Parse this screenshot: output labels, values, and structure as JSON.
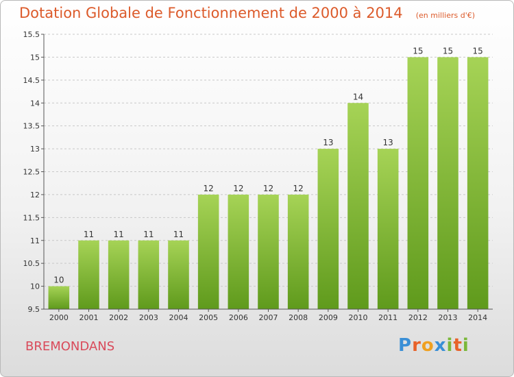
{
  "header": {
    "title": "Dotation Globale de Fonctionnement de 2000 à 2014",
    "subtitle": "(en milliers d'€)"
  },
  "commune": "BREMONDANS",
  "brand": {
    "name": "Proxiti",
    "letters": [
      {
        "ch": "P",
        "color": "#3a8fd6"
      },
      {
        "ch": "r",
        "color": "#e8622a"
      },
      {
        "ch": "o",
        "color": "#f0a020"
      },
      {
        "ch": "x",
        "color": "#3a8fd6"
      },
      {
        "ch": "i",
        "color": "#7ab83a"
      },
      {
        "ch": "t",
        "color": "#e8622a"
      },
      {
        "ch": "i",
        "color": "#7ab83a"
      }
    ]
  },
  "chart_data": {
    "type": "bar",
    "categories": [
      "2000",
      "2001",
      "2002",
      "2003",
      "2004",
      "2005",
      "2006",
      "2007",
      "2008",
      "2009",
      "2010",
      "2011",
      "2012",
      "2013",
      "2014"
    ],
    "values": [
      10,
      11,
      11,
      11,
      11,
      12,
      12,
      12,
      12,
      13,
      14,
      13,
      15,
      15,
      15
    ],
    "labels": [
      "10",
      "11",
      "11",
      "11",
      "11",
      "12",
      "12",
      "12",
      "12",
      "13",
      "14",
      "13",
      "15",
      "15",
      "15"
    ],
    "yticks": [
      "9.5",
      "10",
      "10.5",
      "11",
      "11.5",
      "12",
      "12.5",
      "13",
      "13.5",
      "14",
      "14.5",
      "15",
      "15.5"
    ],
    "ylim": [
      9.5,
      15.5
    ],
    "grid": true,
    "colors": {
      "bar_top": "#a6d356",
      "bar_bottom": "#5f9a1c",
      "grid": "#c8c8c8",
      "axis": "#555555",
      "text": "#333333"
    }
  }
}
